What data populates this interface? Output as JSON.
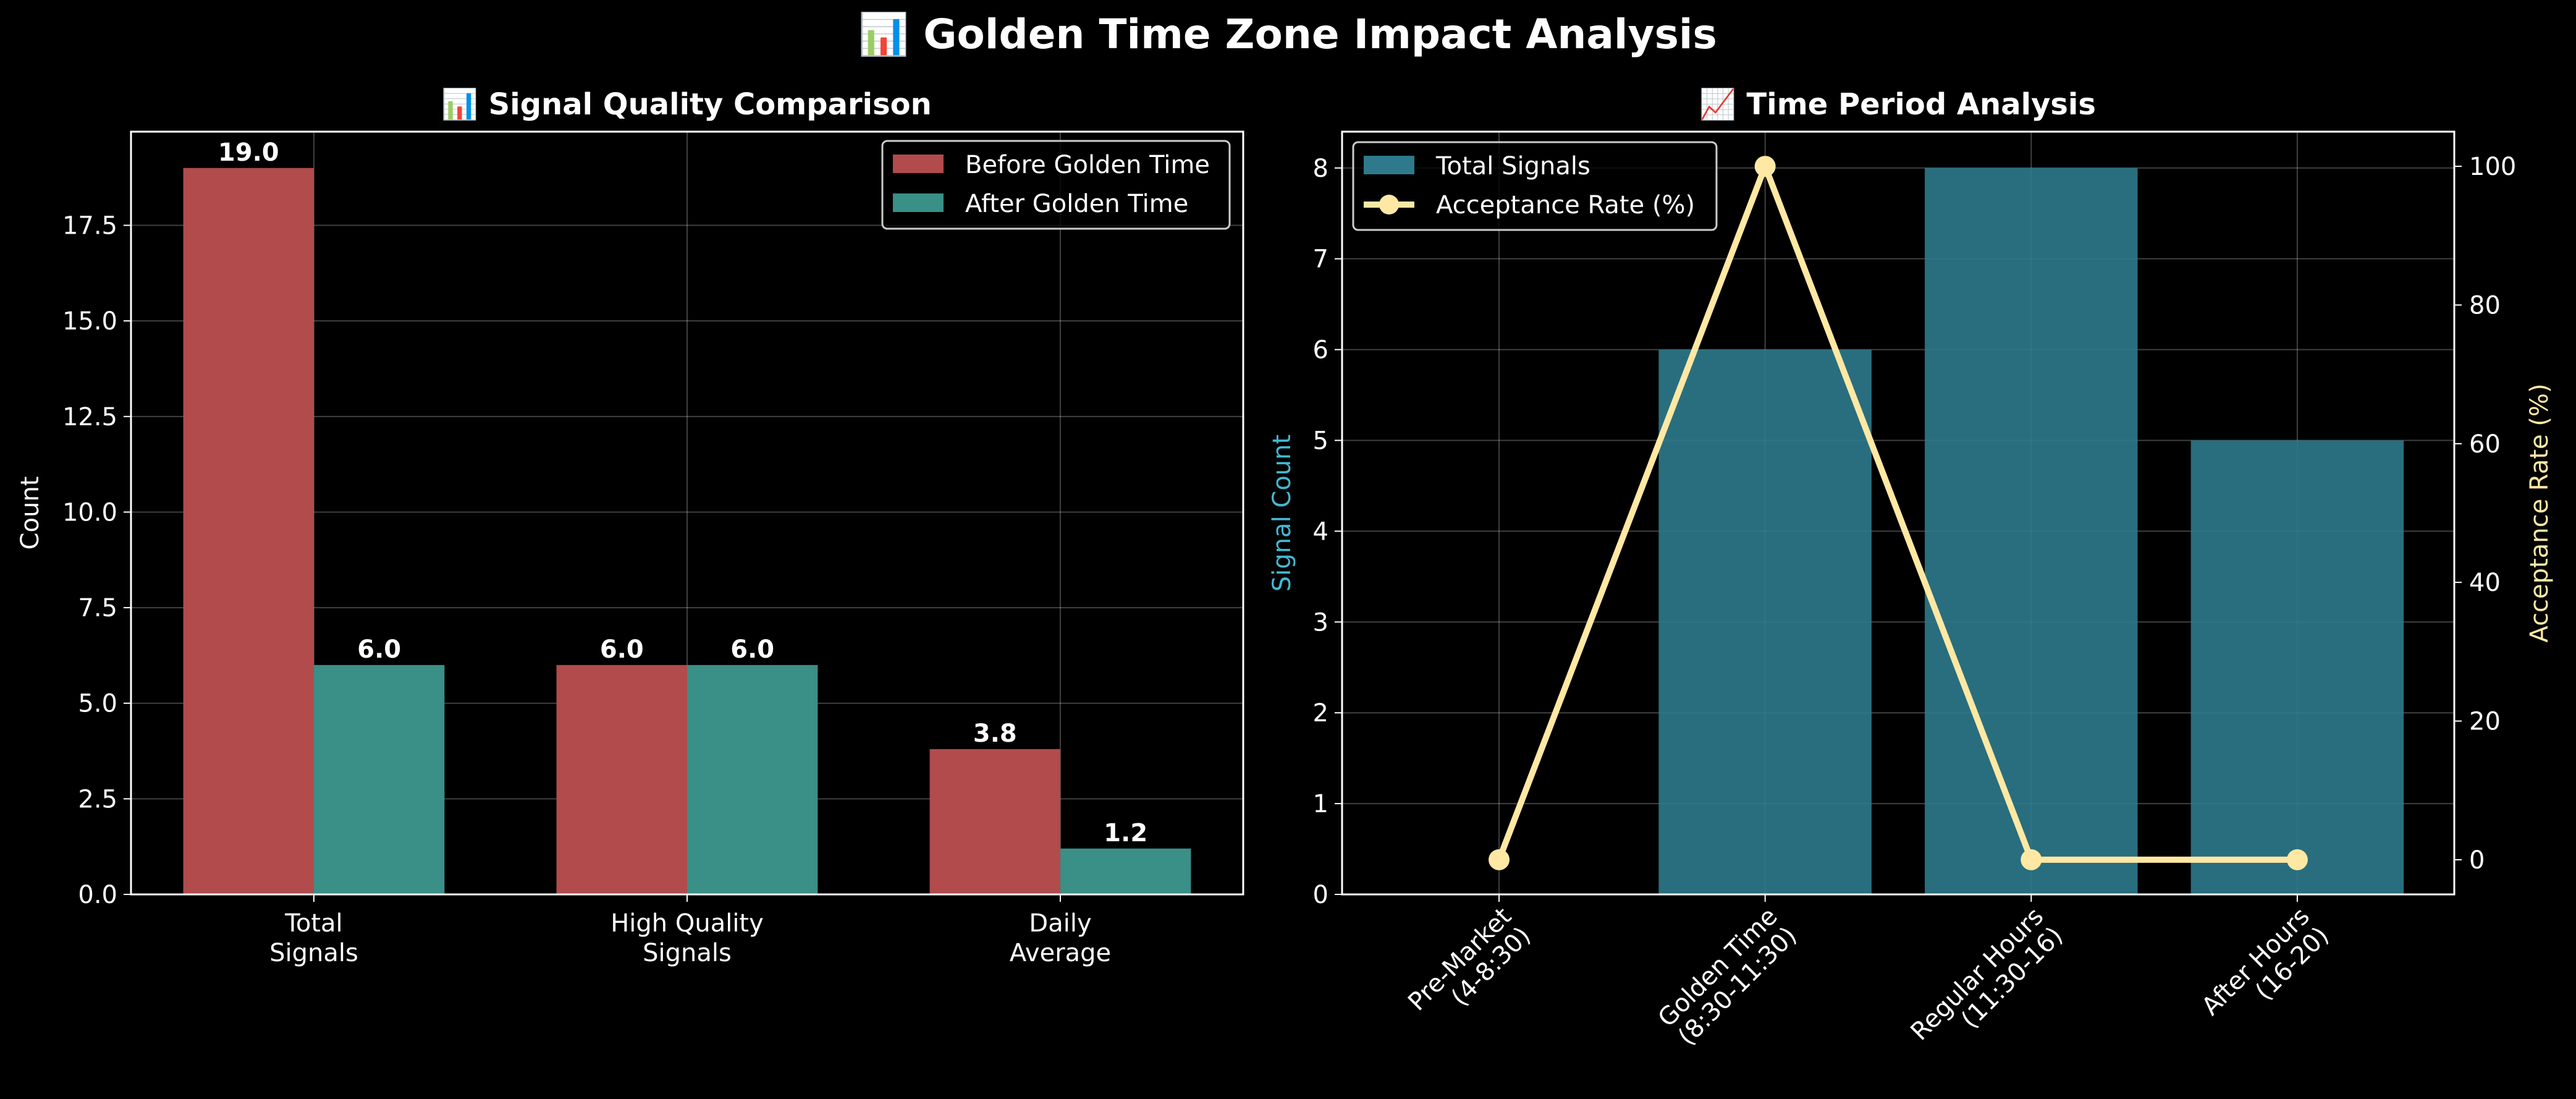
{
  "figure": {
    "title": "📊 Golden Time Zone Impact Analysis",
    "background": "#000000"
  },
  "chart_data": [
    {
      "type": "bar",
      "title": "📊 Signal Quality Comparison",
      "xlabel": "",
      "ylabel": "Count",
      "categories": [
        "Total\nSignals",
        "High Quality\nSignals",
        "Daily\nAverage"
      ],
      "series": [
        {
          "name": "Before Golden Time",
          "values": [
            19.0,
            6.0,
            3.8
          ],
          "color": "#b24b4b",
          "labels": [
            "19.0",
            "6.0",
            "3.8"
          ]
        },
        {
          "name": "After Golden Time",
          "values": [
            6.0,
            6.0,
            1.2
          ],
          "color": "#3a8f86",
          "labels": [
            "6.0",
            "6.0",
            "1.2"
          ]
        }
      ],
      "ylim": [
        0,
        19.95
      ],
      "yticks": [
        0.0,
        2.5,
        5.0,
        7.5,
        10.0,
        12.5,
        15.0,
        17.5
      ],
      "ytick_labels": [
        "0.0",
        "2.5",
        "5.0",
        "7.5",
        "10.0",
        "12.5",
        "15.0",
        "17.5"
      ],
      "grid": true,
      "legend_position": "top-right"
    },
    {
      "type": "bar+line",
      "title": "📈 Time Period Analysis",
      "categories": [
        "Pre-Market\n(4-8:30)",
        "Golden Time\n(8:30-11:30)",
        "Regular Hours\n(11:30-16)",
        "After Hours\n(16-20)"
      ],
      "bars": {
        "name": "Total Signals",
        "values": [
          0,
          6,
          8,
          5
        ],
        "color": "#2e7a8c",
        "axis": "left"
      },
      "line": {
        "name": "Acceptance Rate (%)",
        "values": [
          0,
          100,
          0,
          0
        ],
        "color": "#ffe8a3",
        "axis": "right"
      },
      "ylabel_left": "Signal Count",
      "ylabel_left_color": "#45b7d1",
      "ylabel_right": "Acceptance Rate (%)",
      "ylabel_right_color": "#ffe8a3",
      "ylim_left": [
        0,
        8.4
      ],
      "ylim_right": [
        -5,
        105
      ],
      "yticks_left": [
        0,
        1,
        2,
        3,
        4,
        5,
        6,
        7,
        8
      ],
      "yticks_right": [
        0,
        20,
        40,
        60,
        80,
        100
      ],
      "grid": true,
      "legend_position": "top-left"
    }
  ]
}
